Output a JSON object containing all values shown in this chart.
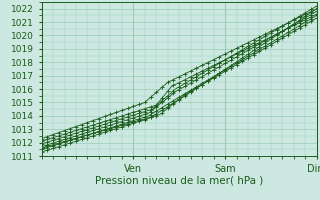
{
  "xlabel": "Pression niveau de la mer( hPa )",
  "bg_color": "#cce8e0",
  "grid_color": "#99ccbb",
  "line_color": "#1a5c1a",
  "xlim": [
    0,
    72
  ],
  "ylim": [
    1011,
    1022.5
  ],
  "yticks": [
    1011,
    1012,
    1013,
    1014,
    1015,
    1016,
    1017,
    1018,
    1019,
    1020,
    1021,
    1022
  ],
  "xtick_positions": [
    24,
    48,
    72
  ],
  "xtick_labels": [
    "Ven",
    "Sam",
    "Dim"
  ],
  "lines_params": [
    [
      1011.3,
      28,
      1013.8,
      36,
      1015.2,
      1022.0
    ],
    [
      1011.5,
      28,
      1014.0,
      36,
      1015.4,
      1021.5
    ],
    [
      1011.7,
      28,
      1014.2,
      35,
      1015.8,
      1021.8
    ],
    [
      1011.9,
      29,
      1014.5,
      35,
      1016.0,
      1022.2
    ],
    [
      1012.1,
      30,
      1014.8,
      34,
      1016.2,
      1021.6
    ],
    [
      1012.3,
      27,
      1015.0,
      33,
      1016.5,
      1022.0
    ],
    [
      1011.6,
      31,
      1014.1,
      37,
      1015.5,
      1021.3
    ]
  ],
  "marker_every": 3,
  "xlabel_fontsize": 7.5,
  "tick_fontsize": 6.5
}
